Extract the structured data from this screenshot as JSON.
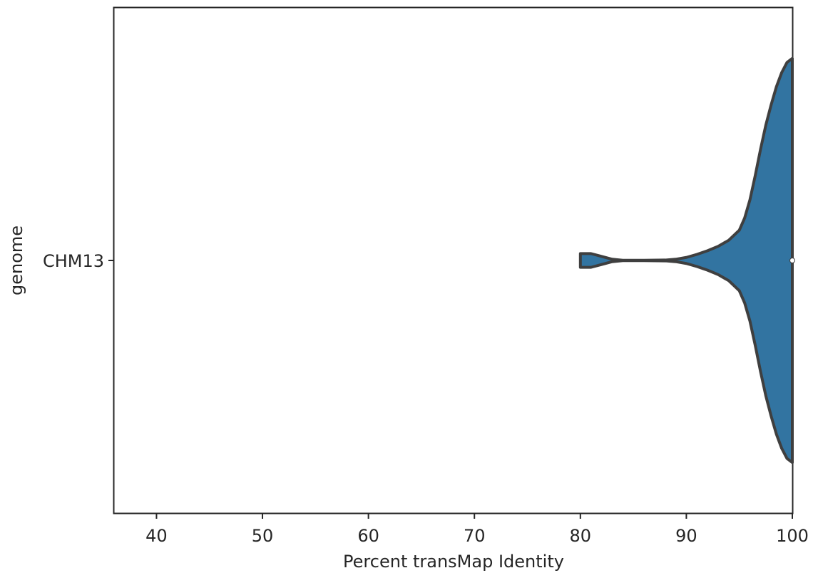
{
  "chart_data": {
    "type": "violin",
    "orientation": "horizontal",
    "xlabel": "Percent transMap Identity",
    "ylabel": "genome",
    "xlim": [
      36,
      100
    ],
    "xticks": [
      "40",
      "50",
      "60",
      "70",
      "80",
      "90",
      "100"
    ],
    "categories": [
      "CHM13"
    ],
    "violin_color": "#3274a1",
    "outline_color": "#3f3f3f",
    "series": [
      {
        "category": "CHM13",
        "min": 80,
        "max": 100,
        "median": 100,
        "density_profile": {
          "x": [
            80,
            81,
            82,
            83,
            84,
            86,
            88,
            89,
            90,
            91,
            92,
            93,
            94,
            95,
            95.5,
            96,
            96.5,
            97,
            97.5,
            98,
            98.5,
            99,
            99.5,
            100
          ],
          "relative_width": [
            0.034,
            0.034,
            0.02,
            0.006,
            0.001,
            0.001,
            0.002,
            0.006,
            0.015,
            0.03,
            0.048,
            0.07,
            0.1,
            0.15,
            0.21,
            0.3,
            0.42,
            0.55,
            0.67,
            0.77,
            0.86,
            0.93,
            0.98,
            1.0
          ]
        }
      }
    ],
    "grid": false,
    "legend": "none"
  }
}
